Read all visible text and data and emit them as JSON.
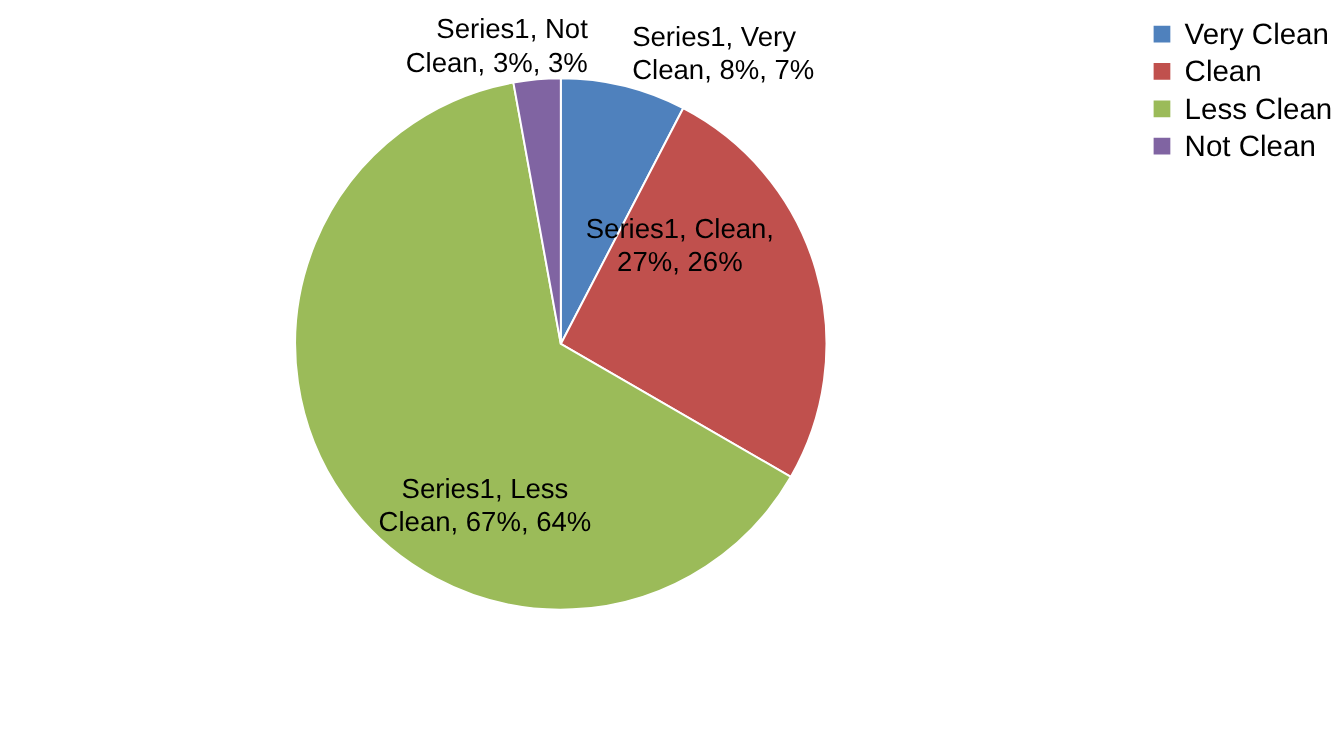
{
  "chart_data": {
    "type": "pie",
    "categories": [
      "Very Clean",
      "Clean",
      "Less Clean",
      "Not Clean"
    ],
    "values": [
      8,
      27,
      67,
      3
    ],
    "colors": [
      "#4f81bd",
      "#c0504d",
      "#9bbb59",
      "#8064a2"
    ],
    "value_labels": [
      "Series1, Very Clean, 8%, 7%",
      "Series1, Clean, 27%, 26%",
      "Series1, Less Clean, 67%, 64%",
      "Series1, Not Clean, 3%, 3%"
    ],
    "legend": "right"
  }
}
